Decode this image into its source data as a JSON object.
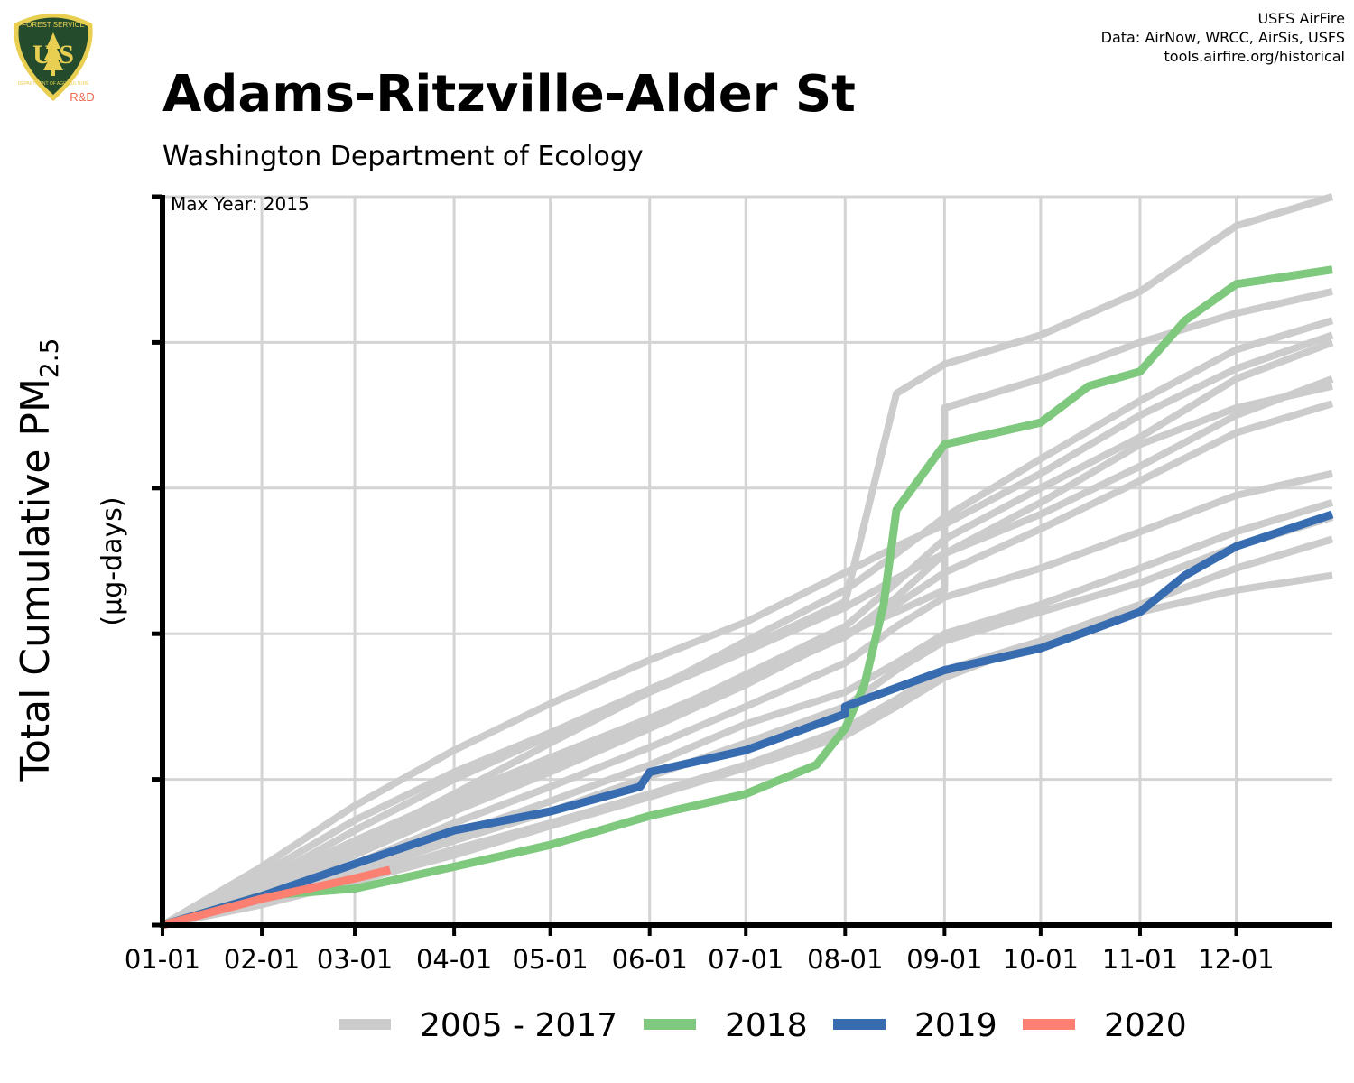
{
  "header": {
    "logo_text_top": "FOREST SERVICE",
    "logo_text_main": "U S",
    "logo_text_bottom": "DEPARTMENT OF AGRICULTURE",
    "logo_badge": "R&D",
    "credit_line1": "USFS AirFire",
    "credit_line2": "Data: AirNow, WRCC, AirSis, USFS",
    "credit_line3": "tools.airfire.org/historical"
  },
  "colors": {
    "history": "#cccccc",
    "y2018": "#7fc97f",
    "y2019": "#386cb0",
    "y2020": "#fb8072",
    "grid": "#d4d4d4",
    "axis": "#000000",
    "logo_shield": "#244c2c",
    "logo_gold": "#e8cf52",
    "logo_badge": "#f06a50"
  },
  "chart_data": {
    "type": "line",
    "title": "Adams-Ritzville-Alder St",
    "subtitle": "Washington Department of Ecology",
    "annotation": "Max Year: 2015",
    "ylabel_main": "Total Cumulative PM",
    "ylabel_sub": "2.5",
    "ylabel_units": "(µg-days)",
    "xlabel": "",
    "x_unit": "day of year",
    "xlim": [
      1,
      366
    ],
    "ylim": [
      0,
      5
    ],
    "y_tick_labels_shown": false,
    "grid": true,
    "legend_position": "bottom",
    "x_ticks": [
      {
        "label": "01-01",
        "day": 1
      },
      {
        "label": "02-01",
        "day": 32
      },
      {
        "label": "03-01",
        "day": 61
      },
      {
        "label": "04-01",
        "day": 92
      },
      {
        "label": "05-01",
        "day": 122
      },
      {
        "label": "06-01",
        "day": 153
      },
      {
        "label": "07-01",
        "day": 183
      },
      {
        "label": "08-01",
        "day": 214
      },
      {
        "label": "09-01",
        "day": 245
      },
      {
        "label": "10-01",
        "day": 275
      },
      {
        "label": "11-01",
        "day": 306
      },
      {
        "label": "12-01",
        "day": 336
      }
    ],
    "y_ticks": [
      0,
      1,
      2,
      3,
      4,
      5
    ],
    "legend": [
      {
        "label": "2005 - 2017",
        "color_key": "history"
      },
      {
        "label": "2018",
        "color_key": "y2018"
      },
      {
        "label": "2019",
        "color_key": "y2019"
      },
      {
        "label": "2020",
        "color_key": "y2020"
      }
    ],
    "series": [
      {
        "name": "2005 - 2017",
        "color_key": "history",
        "width": 8,
        "x": [
          1,
          32,
          61,
          92,
          122,
          153,
          183,
          214,
          230,
          245,
          275,
          306,
          336,
          366
        ],
        "y": [
          0,
          0.4,
          0.82,
          1.2,
          1.52,
          1.82,
          2.08,
          2.42,
          2.6,
          2.75,
          3.1,
          3.5,
          3.82,
          4.05
        ]
      },
      {
        "x": [
          1,
          32,
          61,
          92,
          122,
          153,
          183,
          214,
          230,
          245,
          275,
          306,
          336,
          366
        ],
        "y": [
          0,
          0.35,
          0.72,
          1.05,
          1.32,
          1.62,
          1.9,
          2.22,
          3.65,
          3.85,
          4.05,
          4.35,
          4.8,
          5.0
        ]
      },
      {
        "x": [
          1,
          32,
          61,
          92,
          122,
          153,
          183,
          214,
          230,
          245,
          275,
          306,
          336,
          366
        ],
        "y": [
          0,
          0.28,
          0.58,
          0.88,
          1.15,
          1.42,
          1.7,
          1.98,
          2.25,
          2.55,
          2.9,
          3.3,
          3.55,
          3.7
        ]
      },
      {
        "x": [
          1,
          32,
          61,
          92,
          122,
          153,
          183,
          214,
          230,
          245,
          275,
          306,
          336,
          366
        ],
        "y": [
          0,
          0.25,
          0.55,
          0.9,
          1.25,
          1.6,
          1.95,
          2.3,
          2.55,
          2.8,
          3.2,
          3.6,
          3.95,
          4.15
        ]
      },
      {
        "x": [
          1,
          32,
          61,
          92,
          122,
          153,
          183,
          214,
          230,
          245,
          245,
          275,
          306,
          336,
          366
        ],
        "y": [
          0,
          0.22,
          0.48,
          0.78,
          1.05,
          1.35,
          1.65,
          2.0,
          2.15,
          2.3,
          3.55,
          3.75,
          4.0,
          4.2,
          4.35
        ]
      },
      {
        "x": [
          1,
          32,
          61,
          92,
          122,
          153,
          183,
          214,
          230,
          245,
          275,
          306,
          336,
          366
        ],
        "y": [
          0,
          0.2,
          0.42,
          0.7,
          0.95,
          1.22,
          1.5,
          1.8,
          2.05,
          2.25,
          2.45,
          2.7,
          2.95,
          3.1
        ]
      },
      {
        "x": [
          1,
          32,
          61,
          92,
          122,
          153,
          183,
          214,
          230,
          245,
          275,
          306,
          336,
          366
        ],
        "y": [
          0,
          0.18,
          0.4,
          0.62,
          0.85,
          1.1,
          1.38,
          1.6,
          1.8,
          2.0,
          2.2,
          2.45,
          2.7,
          2.9
        ]
      },
      {
        "x": [
          1,
          32,
          61,
          92,
          122,
          153,
          183,
          214,
          230,
          245,
          275,
          306,
          336,
          366
        ],
        "y": [
          0,
          0.16,
          0.36,
          0.58,
          0.78,
          1.02,
          1.25,
          1.5,
          1.75,
          1.95,
          2.15,
          2.35,
          2.6,
          2.8
        ]
      },
      {
        "x": [
          1,
          32,
          61,
          92,
          122,
          153,
          183,
          214,
          230,
          245,
          275,
          306,
          336,
          366
        ],
        "y": [
          0,
          0.15,
          0.32,
          0.52,
          0.7,
          0.9,
          1.1,
          1.35,
          1.55,
          1.75,
          1.95,
          2.2,
          2.45,
          2.65
        ]
      },
      {
        "x": [
          1,
          32,
          61,
          92,
          122,
          153,
          183,
          214,
          230,
          245,
          275,
          306,
          336,
          366
        ],
        "y": [
          0,
          0.3,
          0.65,
          1.0,
          1.3,
          1.6,
          1.88,
          2.18,
          2.38,
          2.55,
          2.82,
          3.15,
          3.5,
          3.75
        ]
      },
      {
        "x": [
          1,
          32,
          61,
          92,
          122,
          153,
          183,
          214,
          230,
          245,
          275,
          306,
          336,
          366
        ],
        "y": [
          0,
          0.26,
          0.52,
          0.85,
          1.12,
          1.4,
          1.72,
          2.05,
          2.35,
          2.65,
          3.0,
          3.35,
          3.75,
          4.0
        ]
      },
      {
        "x": [
          1,
          32,
          61,
          92,
          122,
          153,
          183,
          214,
          230,
          245,
          275,
          306,
          336,
          366
        ],
        "y": [
          0,
          0.14,
          0.3,
          0.48,
          0.68,
          0.88,
          1.08,
          1.3,
          1.5,
          1.7,
          1.95,
          2.15,
          2.3,
          2.4
        ]
      },
      {
        "x": [
          1,
          32,
          61,
          92,
          122,
          153,
          183,
          214,
          230,
          245,
          275,
          306,
          336,
          366
        ],
        "y": [
          0,
          0.24,
          0.5,
          0.8,
          1.08,
          1.38,
          1.68,
          1.98,
          2.2,
          2.42,
          2.72,
          3.05,
          3.38,
          3.58
        ]
      },
      {
        "name": "2018",
        "color_key": "y2018",
        "width": 9,
        "x": [
          1,
          32,
          61,
          92,
          122,
          153,
          183,
          205,
          214,
          220,
          226,
          230,
          235,
          245,
          275,
          290,
          306,
          320,
          336,
          366
        ],
        "y": [
          0,
          0.2,
          0.25,
          0.4,
          0.55,
          0.75,
          0.9,
          1.1,
          1.35,
          1.65,
          2.2,
          2.85,
          3.0,
          3.3,
          3.45,
          3.7,
          3.8,
          4.15,
          4.4,
          4.5
        ]
      },
      {
        "name": "2019",
        "color_key": "y2019",
        "width": 9,
        "x": [
          1,
          32,
          61,
          92,
          122,
          150,
          153,
          183,
          214,
          214,
          245,
          275,
          290,
          306,
          320,
          336,
          366
        ],
        "y": [
          0,
          0.2,
          0.42,
          0.65,
          0.78,
          0.95,
          1.05,
          1.2,
          1.45,
          1.5,
          1.75,
          1.9,
          2.02,
          2.15,
          2.4,
          2.6,
          2.82
        ]
      },
      {
        "name": "2020",
        "color_key": "y2020",
        "width": 9,
        "x": [
          1,
          32,
          61,
          72
        ],
        "y": [
          0,
          0.18,
          0.32,
          0.38
        ]
      }
    ]
  }
}
